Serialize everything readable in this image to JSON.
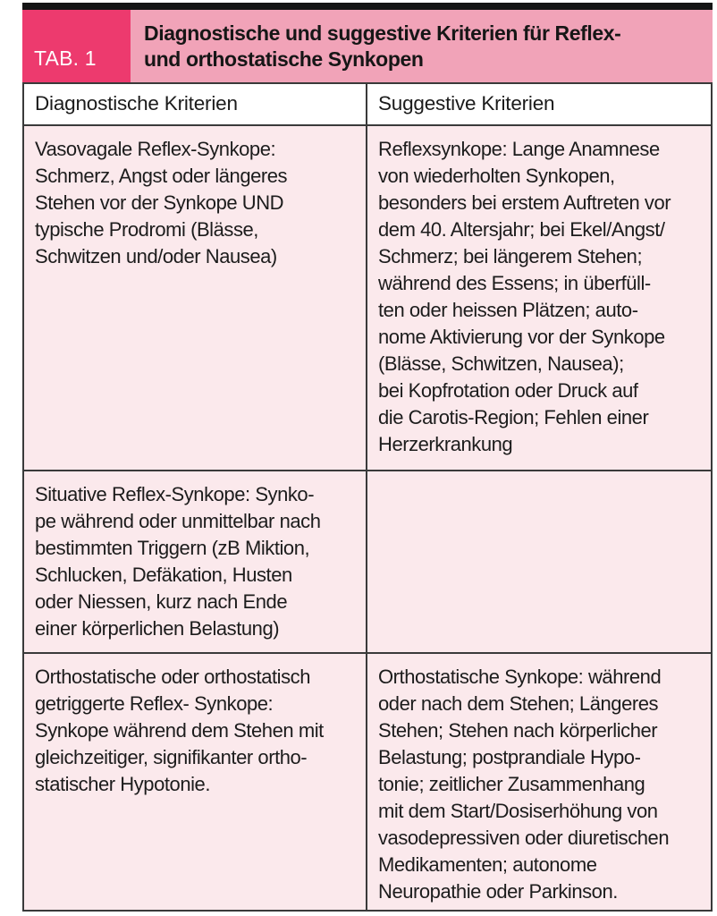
{
  "colors": {
    "accent_pink": "#ed3a6e",
    "title_band_pink": "#f1a3b8",
    "cell_pink": "#fbe9ec",
    "top_bar_black": "#151515",
    "border_gray": "#3a3a3a",
    "text_black": "#1c1c1c",
    "tab_label_white": "#ffffff"
  },
  "table": {
    "tag": "TAB. 1",
    "title": "Diagnostische und suggestive Kriterien für Reflex-\nund orthostatische Synkopen",
    "columns": [
      "Diagnostische Kriterien",
      "Suggestive Kriterien"
    ],
    "rows": [
      {
        "diagnostic": "Vasovagale Reflex-Synkope:\nSchmerz, Angst oder längeres\nStehen vor der Synkope UND\ntypische Prodromi (Blässe,\nSchwitzen und/oder Nausea)",
        "suggestive": "Reflexsynkope: Lange Anamnese\nvon wiederholten Synkopen,\nbesonders bei erstem Auftreten vor\ndem 40. Altersjahr; bei Ekel/Angst/\nSchmerz; bei längerem Stehen;\nwährend des Essens; in überfüll-\nten oder heissen Plätzen; auto-\nnome Aktivierung vor der Synkope\n(Blässe, Schwitzen, Nausea);\nbei Kopfrotation oder Druck auf\ndie Carotis-Region; Fehlen einer\nHerzerkrankung"
      },
      {
        "diagnostic": "Situative Reflex-Synkope: Synko-\npe während oder unmittelbar nach\nbestimmten Triggern (zB Miktion,\nSchlucken, Defäkation, Husten\noder Niessen, kurz nach Ende\neiner körperlichen Belastung)",
        "suggestive": ""
      },
      {
        "diagnostic": "Orthostatische oder orthostatisch\ngetriggerte Reflex- Synkope:\nSynkope während dem Stehen mit\ngleichzeitiger, signifikanter ortho-\nstatischer Hypotonie.",
        "suggestive": "Orthostatische Synkope: während\noder nach dem Stehen; Längeres\nStehen; Stehen nach körperlicher\nBelastung; postprandiale Hypo-\ntonie; zeitlicher Zusammenhang\nmit dem Start/Dosiserhöhung von\nvasodepressiven oder diuretischen\nMedikamenten; autonome\nNeuropathie oder Parkinson."
      }
    ]
  }
}
